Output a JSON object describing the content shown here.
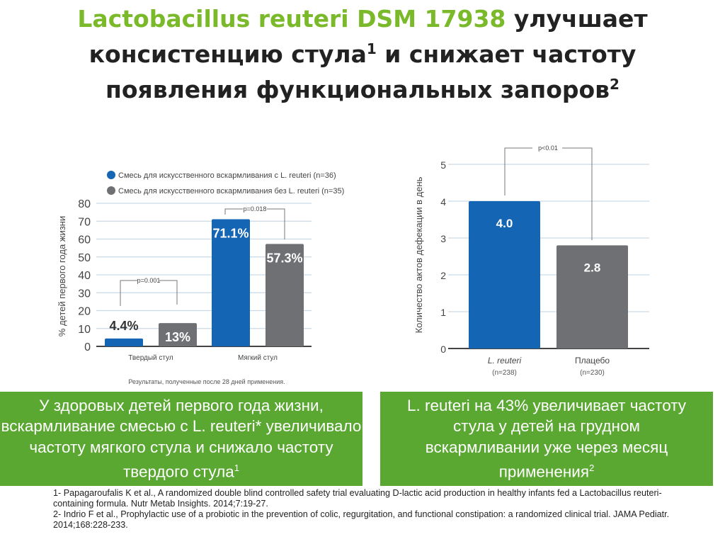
{
  "title": {
    "green": "Lactobacillus reuteri DSM 17938",
    "rest1": " улучшает",
    "line2": "консистенцию стула",
    "sup1": "1",
    "line2b": " и снижает частоту",
    "line3": "появления  функциональных запоров",
    "sup2": "2"
  },
  "colors": {
    "green_text": "#7ab929",
    "green_box": "#5aa832",
    "blue": "#1565b5",
    "gray": "#6e7073"
  },
  "chart_data": [
    {
      "type": "bar",
      "ylabel": "% детей первого года жизни",
      "ylim": [
        0,
        80
      ],
      "yticks": [
        0,
        10,
        20,
        30,
        40,
        50,
        60,
        70,
        80
      ],
      "grid": true,
      "legend": "top",
      "categories": [
        "Твердый стул",
        "Мягкий стул"
      ],
      "series": [
        {
          "name": "Смесь для искусственного вскармливания с L. reuteri (n=36)",
          "values": [
            4.4,
            71.1
          ],
          "labels": [
            "4.4%",
            "71.1%"
          ]
        },
        {
          "name": "Смесь для искусственного вскармливания без L. reuteri (n=35)",
          "values": [
            13,
            57.3
          ],
          "labels": [
            "13%",
            "57.3%"
          ]
        }
      ],
      "annotations": [
        "p=0.001",
        "p=0.018"
      ],
      "note": "Результаты, полученные после 28 дней применения."
    },
    {
      "type": "bar",
      "ylabel": "Количество актов дефекации в день",
      "ylim": [
        0,
        5
      ],
      "yticks": [
        0,
        1,
        2,
        3,
        4,
        5
      ],
      "grid": true,
      "categories": [
        "L. reuteri",
        "Плацебо"
      ],
      "subcategories": [
        "(n=238)",
        "(n=230)"
      ],
      "values": [
        4.0,
        2.8
      ],
      "labels": [
        "4.0",
        "2.8"
      ],
      "annotations": [
        "p<0.01"
      ]
    }
  ],
  "box_left": {
    "text": "У здоровых детей первого года жизни, вскармливание смесью с L. reuteri* увеличивало частоту мягкого стула и снижало частоту твердого стула",
    "sup": "1"
  },
  "box_right": {
    "text": "L. reuteri на 43% увеличивает частоту стула у детей на грудном вскармливании уже через месяц применения",
    "sup": "2"
  },
  "footnotes": [
    "1- Papagaroufalis K et al., A randomized double blind controlled safety trial evaluating D-lactic acid production in healthy infants fed a Lactobacillus reuteri-containing formula. Nutr Metab Insights. 2014;7:19-27.",
    "2- Indrio F et al., Prophylactic use of a probiotic in the prevention of colic, regurgitation, and functional constipation: a randomized clinical trial. JAMA Pediatr. 2014;168:228-233."
  ]
}
